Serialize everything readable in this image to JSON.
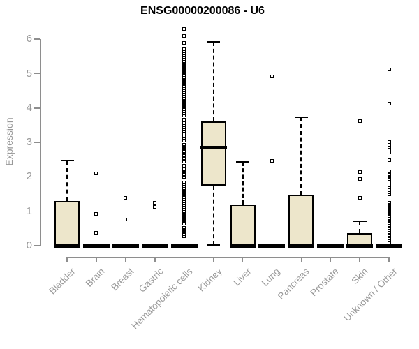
{
  "chart_data": {
    "type": "boxplot",
    "title": "ENSG00000200086 - U6",
    "ylabel": "Expression",
    "xlabel": "",
    "ylim": [
      0,
      6.3
    ],
    "yticks": [
      0,
      1,
      2,
      3,
      4,
      5,
      6
    ],
    "grid": false,
    "legend": "none",
    "categories": [
      "Bladder",
      "Brain",
      "Breast",
      "Gastric",
      "Hematopoietic cells",
      "Kidney",
      "Liver",
      "Lung",
      "Pancreas",
      "Prostate",
      "Skin",
      "Unknown / Other"
    ],
    "series": [
      {
        "name": "Bladder",
        "whisker_low": 0,
        "q1": 0,
        "median": 0,
        "q3": 1.3,
        "whisker_high": 2.47,
        "outliers": []
      },
      {
        "name": "Brain",
        "whisker_low": 0,
        "q1": 0,
        "median": 0,
        "q3": 0,
        "whisker_high": 0,
        "outliers": [
          2.1,
          0.93,
          0.37
        ]
      },
      {
        "name": "Breast",
        "whisker_low": 0,
        "q1": 0,
        "median": 0,
        "q3": 0,
        "whisker_high": 0,
        "outliers": [
          1.39,
          0.76
        ]
      },
      {
        "name": "Gastric",
        "whisker_low": 0,
        "q1": 0,
        "median": 0,
        "q3": 0,
        "whisker_high": 0,
        "outliers": [
          1.25,
          1.13
        ]
      },
      {
        "name": "Hematopoietic cells",
        "whisker_low": 0,
        "q1": 0,
        "median": 0,
        "q3": 0,
        "whisker_high": 0,
        "outliers": [
          6.3,
          6.1,
          5.9,
          5.71,
          5.65,
          5.59,
          5.53,
          5.47,
          5.41,
          5.35,
          5.29,
          5.23,
          5.17,
          5.11,
          5.05,
          4.99,
          4.93,
          4.87,
          4.81,
          4.75,
          4.69,
          4.63,
          4.57,
          4.51,
          4.45,
          4.39,
          4.33,
          4.27,
          4.21,
          4.15,
          4.09,
          4.03,
          3.97,
          3.91,
          3.85,
          3.79,
          3.67,
          3.55,
          3.49,
          3.43,
          3.37,
          3.31,
          3.25,
          3.18,
          3.12,
          3.06,
          2.94,
          2.88,
          2.81,
          2.74,
          2.65,
          2.6,
          2.55,
          2.5,
          2.45,
          2.33,
          2.23,
          2.17,
          2.11,
          2.05,
          1.99,
          1.83,
          1.77,
          1.71,
          1.65,
          1.59,
          1.53,
          1.47,
          1.41,
          1.35,
          1.29,
          1.23,
          1.17,
          1.11,
          1.05,
          0.99,
          0.93,
          0.87,
          0.81,
          0.75,
          0.7,
          0.64,
          0.51,
          0.45,
          0.39,
          0.33,
          0.27
        ]
      },
      {
        "name": "Kidney",
        "whisker_low": 0.02,
        "q1": 1.74,
        "median": 2.87,
        "q3": 3.62,
        "whisker_high": 5.93,
        "outliers": []
      },
      {
        "name": "Liver",
        "whisker_low": 0,
        "q1": 0,
        "median": 0,
        "q3": 1.2,
        "whisker_high": 2.43,
        "outliers": []
      },
      {
        "name": "Lung",
        "whisker_low": 0,
        "q1": 0,
        "median": 0,
        "q3": 0,
        "whisker_high": 0,
        "outliers": [
          4.92,
          2.47
        ]
      },
      {
        "name": "Pancreas",
        "whisker_low": 0,
        "q1": 0,
        "median": 0,
        "q3": 1.49,
        "whisker_high": 3.74,
        "outliers": []
      },
      {
        "name": "Prostate",
        "whisker_low": 0,
        "q1": 0,
        "median": 0,
        "q3": 0,
        "whisker_high": 0,
        "outliers": []
      },
      {
        "name": "Skin",
        "whisker_low": 0,
        "q1": 0,
        "median": 0,
        "q3": 0.37,
        "whisker_high": 0.7,
        "outliers": [
          3.62,
          2.13,
          1.93,
          1.38
        ]
      },
      {
        "name": "Unknown / Other",
        "whisker_low": 0,
        "q1": 0,
        "median": 0,
        "q3": 0,
        "whisker_high": 0,
        "outliers": [
          5.12,
          4.13,
          3.01,
          2.93,
          2.85,
          2.78,
          2.71,
          2.48,
          2.16,
          2.06,
          2.0,
          1.93,
          1.83,
          1.76,
          1.69,
          1.62,
          1.56,
          1.49,
          1.25,
          1.19,
          1.13,
          1.07,
          1.01,
          0.95,
          0.91,
          0.85,
          0.78,
          0.72,
          0.65,
          0.58,
          0.51,
          0.44,
          0.38,
          0.32,
          0.27,
          0.21,
          0.15,
          0.09
        ]
      }
    ],
    "colors": {
      "background": "#FFFFFF",
      "box_fill": "#EDE6CB",
      "box_stroke": "#000000",
      "axis": "#8E8E8E",
      "label_text": "#999999",
      "title_text": "#000000"
    }
  }
}
